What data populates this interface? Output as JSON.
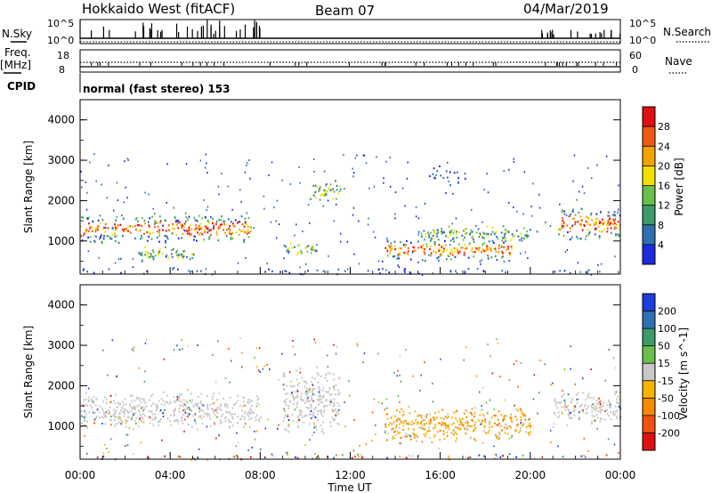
{
  "header": {
    "title": "Hokkaido West (fitACF)",
    "beam": "Beam 07",
    "date": "04/Mar/2019"
  },
  "top_panel": {
    "nsky_label": "N.Sky",
    "nsky_ticks": [
      "10^5",
      "10^0"
    ],
    "nsearch_label": "N.Search",
    "nsearch_ticks": [
      "10^5",
      "10^0"
    ],
    "freq_label": "Freq.",
    "freq_unit": "[MHz]",
    "freq_ticks": [
      "18",
      "8"
    ],
    "nave_label": "Nave",
    "nave_ticks": [
      "60",
      "0"
    ],
    "cpid_label": "CPID",
    "cpid_text": "normal (fast stereo) 153"
  },
  "chart_data": [
    {
      "type": "heatmap",
      "name": "power",
      "ylabel": "Slant Range [km]",
      "xlabel": "",
      "ylim": [
        180,
        4500
      ],
      "yticks": [
        "1000",
        "2000",
        "3000",
        "4000"
      ],
      "colorbar_label": "Power [dB]",
      "colorbar_levels": [
        "4",
        "8",
        "12",
        "16",
        "20",
        "24",
        "28"
      ],
      "colorbar_colors": [
        "#1d2bdc",
        "#2f6fb4",
        "#3d9a6a",
        "#66c04a",
        "#f2e000",
        "#f5a300",
        "#f05a10",
        "#e01010"
      ],
      "regions": [
        {
          "t0": 0.0,
          "t1": 7.6,
          "r0": 950,
          "r1": 1700,
          "level": "strong"
        },
        {
          "t0": 2.5,
          "t1": 5.0,
          "r0": 500,
          "r1": 900,
          "level": "medium"
        },
        {
          "t0": 9.0,
          "t1": 10.5,
          "r0": 600,
          "r1": 1000,
          "level": "medium"
        },
        {
          "t0": 10.2,
          "t1": 11.6,
          "r0": 2000,
          "r1": 2500,
          "level": "medium"
        },
        {
          "t0": 13.5,
          "t1": 19.2,
          "r0": 500,
          "r1": 1100,
          "level": "strong"
        },
        {
          "t0": 15.0,
          "t1": 20.0,
          "r0": 1000,
          "r1": 1400,
          "level": "medium"
        },
        {
          "t0": 21.2,
          "t1": 24.0,
          "r0": 1000,
          "r1": 1900,
          "level": "strong"
        },
        {
          "t0": 15.5,
          "t1": 17.5,
          "r0": 2300,
          "r1": 3000,
          "level": "weak"
        },
        {
          "t0": 0.0,
          "t1": 24.0,
          "r0": 180,
          "r1": 350,
          "level": "weak"
        }
      ]
    },
    {
      "type": "heatmap",
      "name": "velocity",
      "ylabel": "Slant Range [km]",
      "xlabel": "Time UT",
      "ylim": [
        180,
        4500
      ],
      "yticks": [
        "1000",
        "2000",
        "3000",
        "4000"
      ],
      "xticks": [
        "00:00",
        "04:00",
        "08:00",
        "12:00",
        "16:00",
        "20:00",
        "00:00"
      ],
      "colorbar_label": "Velocity [m s^-1]",
      "colorbar_levels": [
        "200",
        "100",
        "50",
        "15",
        "-15",
        "-50",
        "-100",
        "-200"
      ],
      "colorbar_colors": [
        "#1d3ddc",
        "#2f6fb4",
        "#3d9a6a",
        "#66c04a",
        "#c8c8c8",
        "#f5b400",
        "#f58a00",
        "#f05010",
        "#e01010"
      ],
      "regions": [
        {
          "t0": 0.0,
          "t1": 8.0,
          "r0": 900,
          "r1": 1900,
          "level": "ground"
        },
        {
          "t0": 9.0,
          "t1": 11.5,
          "r0": 700,
          "r1": 2500,
          "level": "ground"
        },
        {
          "t0": 13.5,
          "t1": 20.0,
          "r0": 600,
          "r1": 1500,
          "level": "away"
        },
        {
          "t0": 21.0,
          "t1": 24.0,
          "r0": 1000,
          "r1": 1900,
          "level": "ground"
        },
        {
          "t0": 0.0,
          "t1": 24.0,
          "r0": 180,
          "r1": 350,
          "level": "mixed"
        }
      ]
    }
  ]
}
